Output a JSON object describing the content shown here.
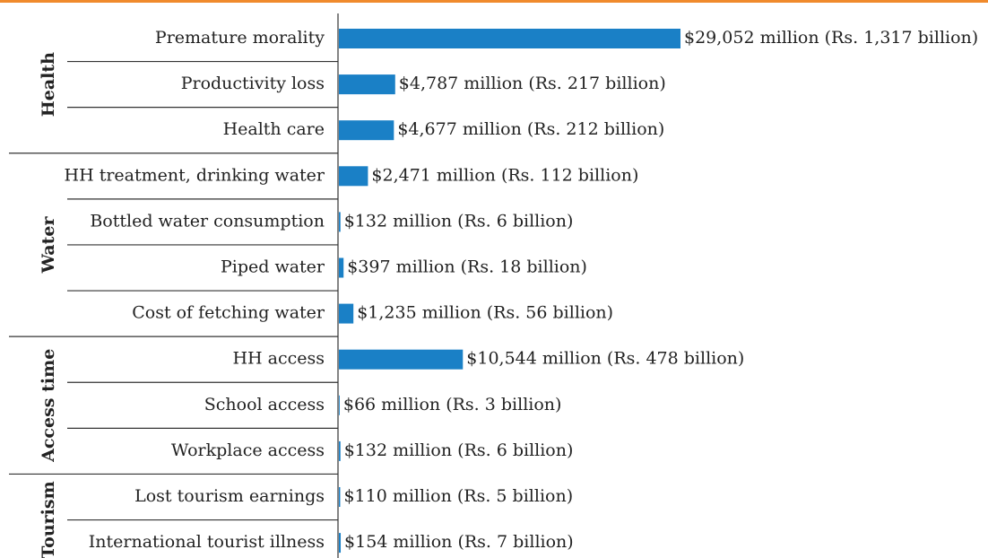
{
  "chart_data": {
    "type": "bar",
    "orientation": "horizontal",
    "color": "#1a80c6",
    "categories": [
      "Premature morality",
      "Productivity loss",
      "Health care",
      "HH treatment, drinking water",
      "Bottled water consumption",
      "Piped water",
      "Cost of fetching water",
      "HH access",
      "School access",
      "Workplace access",
      "Lost tourism earnings",
      "International tourist illness"
    ],
    "category_groups": [
      "Health",
      "Health",
      "Health",
      "Water",
      "Water",
      "Water",
      "Water",
      "Access time",
      "Access time",
      "Access time",
      "Tourism",
      "Tourism"
    ],
    "values": [
      29052,
      4787,
      4677,
      2471,
      132,
      397,
      1235,
      10544,
      66,
      132,
      110,
      154
    ],
    "value_labels": [
      "$29,052 million (Rs. 1,317 billion)",
      "$4,787 million (Rs. 217 billion)",
      "$4,677 million (Rs. 212 billion)",
      "$2,471 million (Rs. 112 billion)",
      "$132 million (Rs. 6 billion)",
      "$397 million (Rs. 18 billion)",
      "$1,235 million (Rs. 56 billion)",
      "$10,544 million (Rs. 478 billion)",
      "$66 million (Rs. 3 billion)",
      "$132 million (Rs. 6 billion)",
      "$110 million (Rs. 5 billion)",
      "$154 million (Rs. 7 billion)"
    ]
  }
}
